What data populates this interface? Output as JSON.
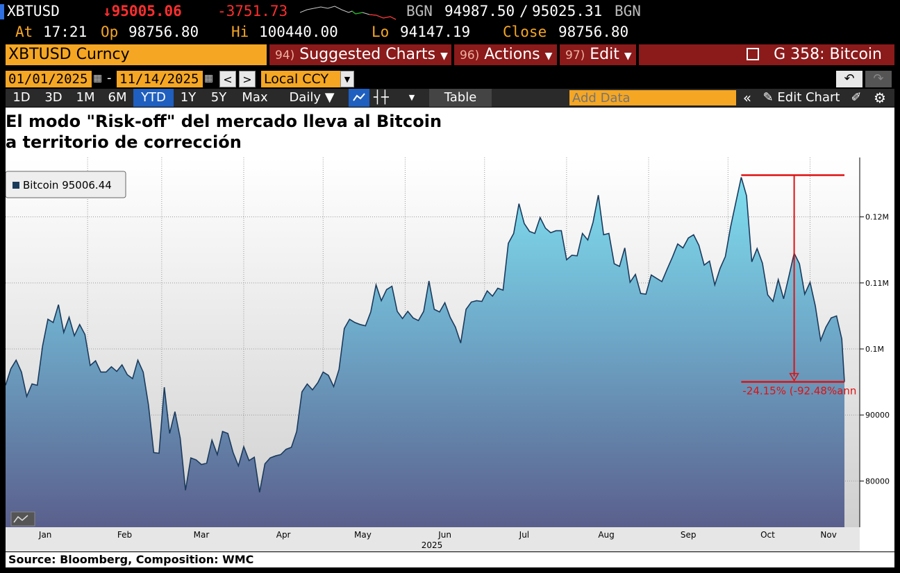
{
  "header": {
    "ticker": "XBTUSD",
    "last_price": "↓95005.06",
    "change": "-3751.73",
    "bgn_label": "BGN",
    "bid": "94987.50",
    "slash": "/",
    "ask": "95025.31",
    "bgn_label2": "BGN",
    "at_label": "At",
    "at_value": "17:21",
    "op_label": "Op",
    "op_value": "98756.80",
    "hi_label": "Hi",
    "hi_value": "100440.00",
    "lo_label": "Lo",
    "lo_value": "94147.19",
    "close_label": "Close",
    "close_value": "98756.80"
  },
  "menu": {
    "security": "XBTUSD Curncy",
    "suggested_num": "94)",
    "suggested_label": "Suggested Charts",
    "actions_num": "96)",
    "actions_label": "Actions",
    "edit_num": "97)",
    "edit_label": "Edit",
    "function_label": "G 358: Bitcoin"
  },
  "daterange": {
    "start": "01/01/2025",
    "dash": "-",
    "end": "11/14/2025",
    "currency": "Local CCY"
  },
  "periods": [
    "1D",
    "3D",
    "1M",
    "6M",
    "YTD",
    "1Y",
    "5Y",
    "Max"
  ],
  "active_period": "YTD",
  "frequency": "Daily ▼",
  "table_label": "Table",
  "add_data_placeholder": "Add Data",
  "edit_chart_label": "Edit Chart",
  "chart": {
    "title_line1": "El modo \"Risk-off\" del mercado lleva al Bitcoin",
    "title_line2": "a territorio de corrección",
    "legend": "Bitcoin 95006.44",
    "annotation": "-24.15% (-92.48%ann",
    "year_label": "2025",
    "source": "Source: Bloomberg, Composition: WMC"
  },
  "colors": {
    "accent_orange": "#f5a623",
    "menu_red": "#8b1a1a",
    "active_blue": "#1f5fbf",
    "line": "#1a3a5c",
    "annotation_red": "#e01010"
  },
  "chart_data": {
    "type": "area",
    "series": [
      {
        "name": "Bitcoin"
      }
    ],
    "x_tick_labels": [
      "Jan",
      "Feb",
      "Mar",
      "Apr",
      "May",
      "Jun",
      "Jul",
      "Aug",
      "Sep",
      "Oct",
      "Nov"
    ],
    "y_tick_labels": [
      "80000",
      "90000",
      "0.1M",
      "0.11M",
      "0.12M"
    ],
    "ylim": [
      73000,
      129000
    ],
    "grid": true,
    "legend_position": "top-left",
    "x_start": "2025-01-01",
    "x_end": "2025-11-14",
    "points": [
      [
        "2025-01-01",
        94500
      ],
      [
        "2025-01-03",
        97000
      ],
      [
        "2025-01-05",
        98300
      ],
      [
        "2025-01-07",
        96500
      ],
      [
        "2025-01-09",
        92800
      ],
      [
        "2025-01-11",
        94700
      ],
      [
        "2025-01-13",
        94500
      ],
      [
        "2025-01-15",
        100500
      ],
      [
        "2025-01-17",
        104500
      ],
      [
        "2025-01-19",
        104000
      ],
      [
        "2025-01-21",
        106700
      ],
      [
        "2025-01-23",
        102500
      ],
      [
        "2025-01-25",
        104800
      ],
      [
        "2025-01-27",
        102000
      ],
      [
        "2025-01-29",
        103700
      ],
      [
        "2025-01-31",
        102200
      ],
      [
        "2025-02-02",
        97500
      ],
      [
        "2025-02-04",
        98200
      ],
      [
        "2025-02-06",
        96500
      ],
      [
        "2025-02-08",
        96500
      ],
      [
        "2025-02-10",
        97300
      ],
      [
        "2025-02-12",
        96600
      ],
      [
        "2025-02-14",
        97600
      ],
      [
        "2025-02-16",
        96100
      ],
      [
        "2025-02-18",
        95500
      ],
      [
        "2025-02-20",
        98300
      ],
      [
        "2025-02-22",
        96500
      ],
      [
        "2025-02-24",
        91500
      ],
      [
        "2025-02-26",
        84300
      ],
      [
        "2025-02-28",
        84200
      ],
      [
        "2025-03-02",
        94200
      ],
      [
        "2025-03-04",
        87200
      ],
      [
        "2025-03-06",
        90500
      ],
      [
        "2025-03-08",
        86500
      ],
      [
        "2025-03-10",
        78600
      ],
      [
        "2025-03-12",
        83500
      ],
      [
        "2025-03-14",
        83200
      ],
      [
        "2025-03-16",
        82500
      ],
      [
        "2025-03-18",
        82700
      ],
      [
        "2025-03-20",
        86200
      ],
      [
        "2025-03-22",
        84000
      ],
      [
        "2025-03-24",
        87500
      ],
      [
        "2025-03-26",
        87200
      ],
      [
        "2025-03-28",
        84300
      ],
      [
        "2025-03-30",
        82300
      ],
      [
        "2025-04-01",
        85200
      ],
      [
        "2025-04-03",
        83100
      ],
      [
        "2025-04-05",
        83600
      ],
      [
        "2025-04-07",
        78300
      ],
      [
        "2025-04-09",
        82600
      ],
      [
        "2025-04-11",
        83500
      ],
      [
        "2025-04-13",
        83800
      ],
      [
        "2025-04-15",
        84000
      ],
      [
        "2025-04-17",
        84800
      ],
      [
        "2025-04-19",
        85100
      ],
      [
        "2025-04-21",
        87500
      ],
      [
        "2025-04-23",
        93500
      ],
      [
        "2025-04-25",
        94700
      ],
      [
        "2025-04-27",
        93800
      ],
      [
        "2025-04-29",
        94900
      ],
      [
        "2025-05-01",
        96500
      ],
      [
        "2025-05-03",
        96000
      ],
      [
        "2025-05-05",
        94300
      ],
      [
        "2025-05-07",
        96900
      ],
      [
        "2025-05-09",
        103100
      ],
      [
        "2025-05-11",
        104500
      ],
      [
        "2025-05-13",
        104000
      ],
      [
        "2025-05-15",
        103700
      ],
      [
        "2025-05-17",
        103500
      ],
      [
        "2025-05-19",
        105600
      ],
      [
        "2025-05-21",
        109700
      ],
      [
        "2025-05-23",
        107300
      ],
      [
        "2025-05-25",
        109000
      ],
      [
        "2025-05-27",
        109500
      ],
      [
        "2025-05-29",
        105700
      ],
      [
        "2025-05-31",
        104600
      ],
      [
        "2025-06-02",
        105700
      ],
      [
        "2025-06-04",
        104700
      ],
      [
        "2025-06-06",
        104300
      ],
      [
        "2025-06-08",
        105700
      ],
      [
        "2025-06-10",
        110300
      ],
      [
        "2025-06-12",
        106000
      ],
      [
        "2025-06-14",
        105600
      ],
      [
        "2025-06-16",
        107000
      ],
      [
        "2025-06-18",
        104800
      ],
      [
        "2025-06-20",
        103300
      ],
      [
        "2025-06-22",
        100900
      ],
      [
        "2025-06-24",
        106000
      ],
      [
        "2025-06-26",
        107100
      ],
      [
        "2025-06-28",
        107300
      ],
      [
        "2025-06-30",
        107200
      ],
      [
        "2025-07-02",
        108800
      ],
      [
        "2025-07-04",
        108000
      ],
      [
        "2025-07-06",
        109200
      ],
      [
        "2025-07-08",
        108900
      ],
      [
        "2025-07-10",
        116000
      ],
      [
        "2025-07-12",
        117500
      ],
      [
        "2025-07-14",
        122000
      ],
      [
        "2025-07-16",
        119000
      ],
      [
        "2025-07-18",
        117800
      ],
      [
        "2025-07-20",
        117500
      ],
      [
        "2025-07-22",
        119900
      ],
      [
        "2025-07-24",
        118300
      ],
      [
        "2025-07-26",
        117600
      ],
      [
        "2025-07-28",
        117900
      ],
      [
        "2025-07-30",
        117900
      ],
      [
        "2025-08-01",
        113500
      ],
      [
        "2025-08-03",
        114200
      ],
      [
        "2025-08-05",
        114100
      ],
      [
        "2025-08-07",
        117500
      ],
      [
        "2025-08-09",
        116500
      ],
      [
        "2025-08-11",
        119200
      ],
      [
        "2025-08-13",
        123300
      ],
      [
        "2025-08-15",
        117300
      ],
      [
        "2025-08-17",
        117500
      ],
      [
        "2025-08-19",
        112900
      ],
      [
        "2025-08-21",
        112500
      ],
      [
        "2025-08-23",
        115300
      ],
      [
        "2025-08-25",
        110100
      ],
      [
        "2025-08-27",
        111300
      ],
      [
        "2025-08-29",
        108400
      ],
      [
        "2025-08-31",
        108300
      ],
      [
        "2025-09-02",
        111200
      ],
      [
        "2025-09-04",
        110700
      ],
      [
        "2025-09-06",
        110200
      ],
      [
        "2025-09-08",
        112100
      ],
      [
        "2025-09-10",
        113900
      ],
      [
        "2025-09-12",
        115900
      ],
      [
        "2025-09-14",
        115300
      ],
      [
        "2025-09-16",
        116800
      ],
      [
        "2025-09-18",
        117300
      ],
      [
        "2025-09-20",
        115700
      ],
      [
        "2025-09-22",
        112700
      ],
      [
        "2025-09-24",
        113300
      ],
      [
        "2025-09-26",
        109700
      ],
      [
        "2025-09-28",
        112200
      ],
      [
        "2025-09-30",
        114000
      ],
      [
        "2025-10-02",
        118500
      ],
      [
        "2025-10-04",
        122300
      ],
      [
        "2025-10-06",
        126000
      ],
      [
        "2025-10-08",
        123200
      ],
      [
        "2025-10-10",
        113200
      ],
      [
        "2025-10-12",
        115200
      ],
      [
        "2025-10-14",
        113000
      ],
      [
        "2025-10-16",
        108200
      ],
      [
        "2025-10-18",
        107200
      ],
      [
        "2025-10-20",
        110500
      ],
      [
        "2025-10-22",
        107600
      ],
      [
        "2025-10-24",
        111000
      ],
      [
        "2025-10-26",
        114500
      ],
      [
        "2025-10-28",
        112900
      ],
      [
        "2025-10-30",
        108300
      ],
      [
        "2025-11-01",
        110100
      ],
      [
        "2025-11-03",
        106500
      ],
      [
        "2025-11-05",
        101300
      ],
      [
        "2025-11-07",
        103300
      ],
      [
        "2025-11-09",
        104700
      ],
      [
        "2025-11-11",
        105000
      ],
      [
        "2025-11-13",
        101500
      ],
      [
        "2025-11-14",
        95006
      ]
    ],
    "drawdown": {
      "from": [
        "2025-10-06",
        126000
      ],
      "to": [
        "2025-11-14",
        95006
      ],
      "label": "-24.15% (-92.48%ann"
    }
  }
}
